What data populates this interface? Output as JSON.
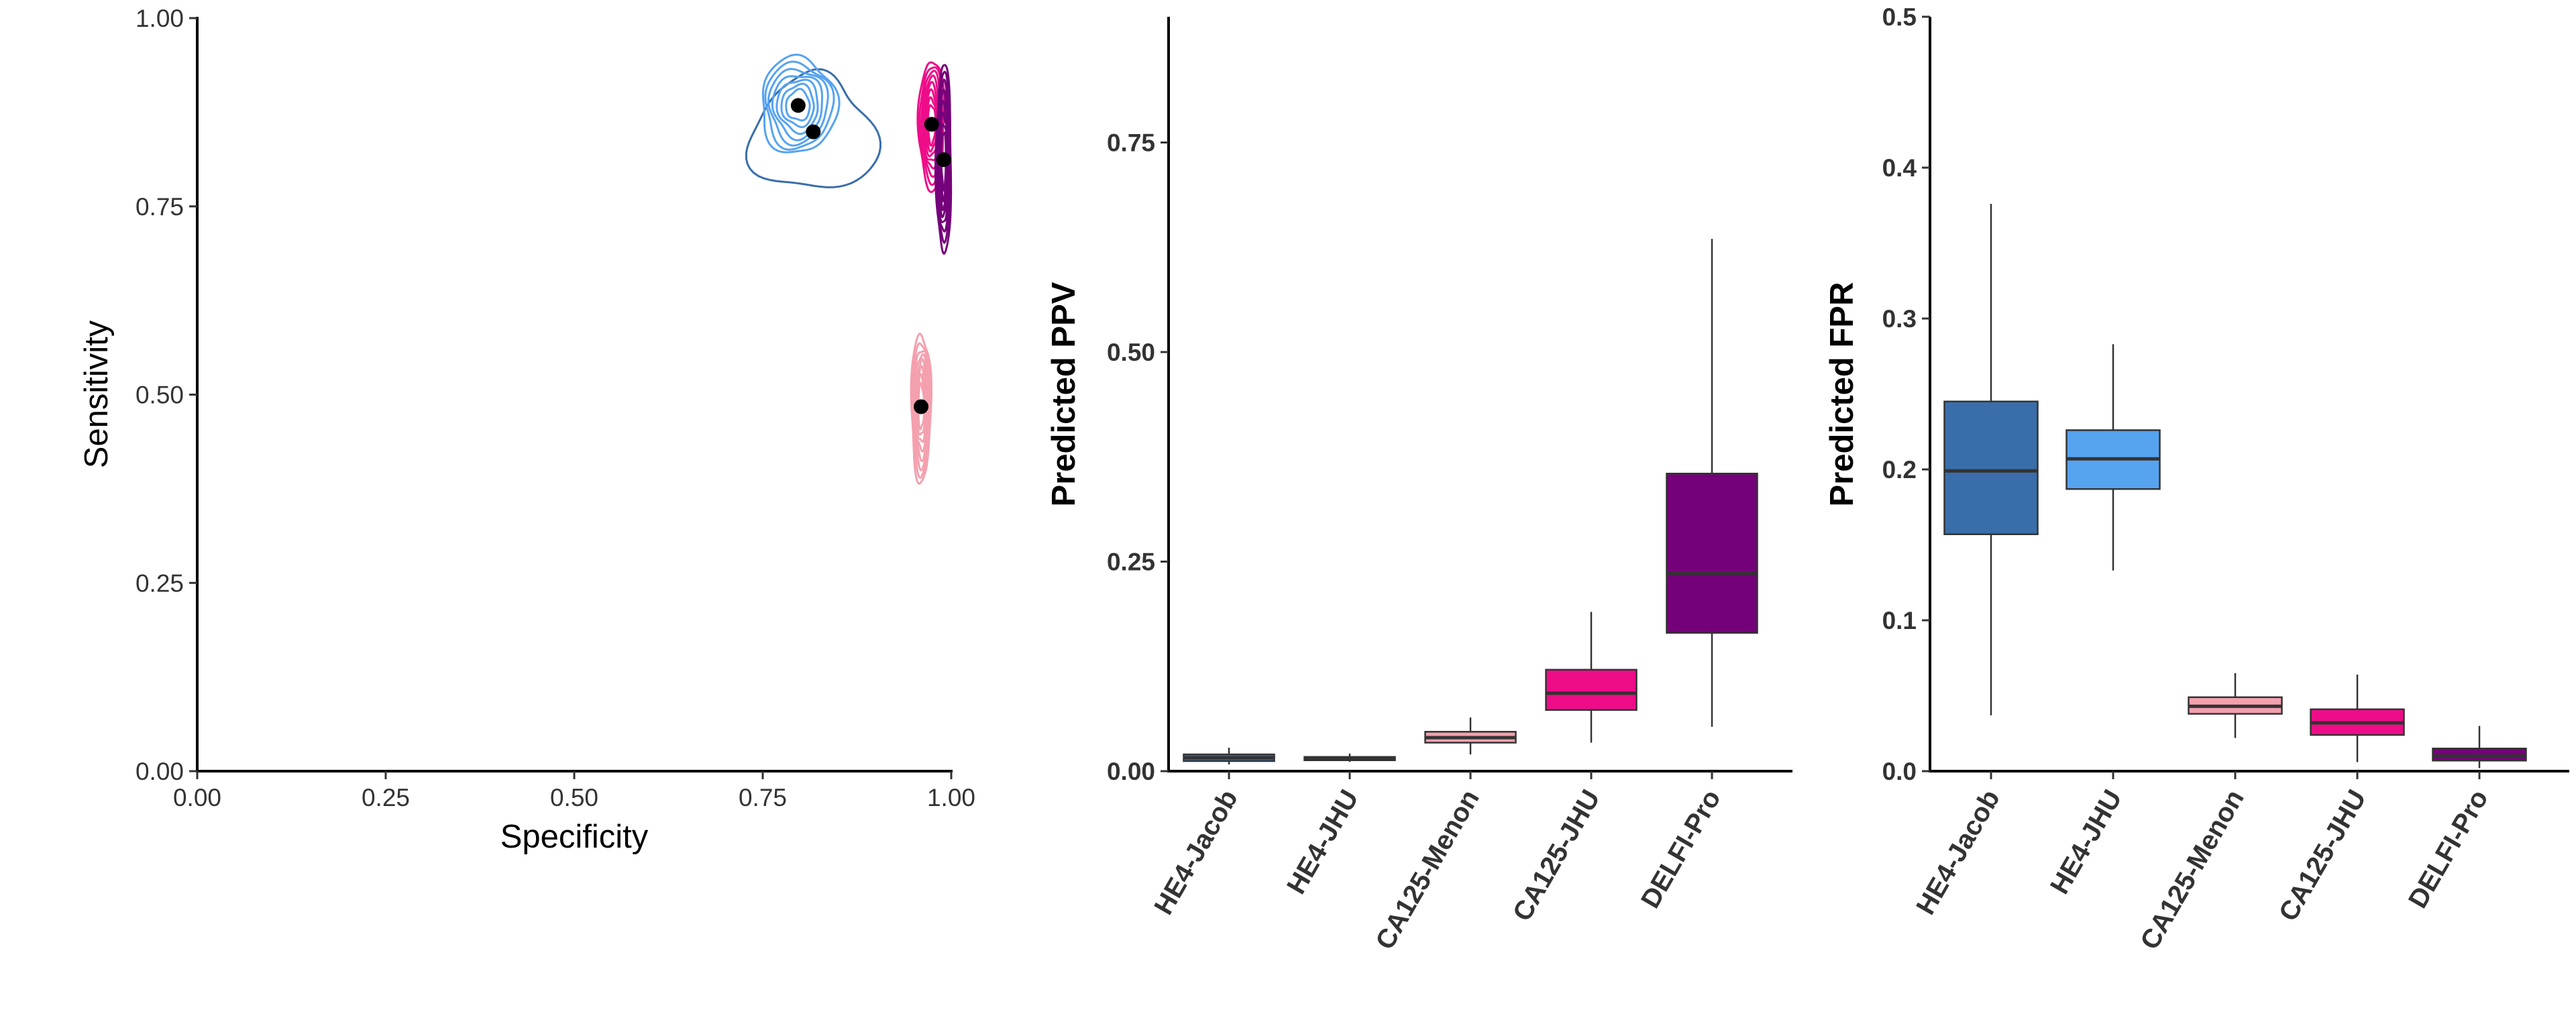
{
  "chart_data": [
    {
      "type": "scatter",
      "xlabel": "Specificity",
      "ylabel": "Sensitivity",
      "xlim": [
        0,
        1
      ],
      "ylim": [
        0,
        1
      ],
      "x_ticks": [
        "0.00",
        "0.25",
        "0.50",
        "0.75",
        "1.00"
      ],
      "y_ticks": [
        "0.00",
        "0.25",
        "0.50",
        "0.75",
        "1.00"
      ],
      "grid": false,
      "points": [
        {
          "category": "HE4-Jacob",
          "x": 0.817,
          "y": 0.849,
          "color": "#3A6EAA",
          "contour": {
            "rx": 0.082,
            "ry": 0.077,
            "rings": 1
          }
        },
        {
          "category": "HE4-JHU",
          "x": 0.797,
          "y": 0.884,
          "color": "#56A3F0",
          "contour": {
            "rx": 0.05,
            "ry": 0.064,
            "rings": 7
          }
        },
        {
          "category": "CA125-Menon",
          "x": 0.96,
          "y": 0.484,
          "color": "#F4A0AE",
          "contour": {
            "rx": 0.013,
            "ry": 0.098,
            "rings": 8
          }
        },
        {
          "category": "CA125-JHU",
          "x": 0.974,
          "y": 0.859,
          "color": "#EE0C88",
          "contour": {
            "rx": 0.017,
            "ry": 0.086,
            "rings": 8
          }
        },
        {
          "category": "DELFI-Pro",
          "x": 0.99,
          "y": 0.812,
          "color": "#74007A",
          "contour": {
            "rx": 0.01,
            "ry": 0.125,
            "rings": 8
          }
        }
      ]
    },
    {
      "type": "box",
      "xlabel": "",
      "ylabel": "Predicted PPV",
      "ylim": [
        0,
        0.9
      ],
      "y_ticks": [
        "0.00",
        "0.25",
        "0.50",
        "0.75"
      ],
      "categories": [
        "HE4-Jacob",
        "HE4-JHU",
        "CA125-Menon",
        "CA125-JHU",
        "DELFI-Pro"
      ],
      "boxes": [
        {
          "min": 0.008,
          "q1": 0.012,
          "median": 0.016,
          "q3": 0.02,
          "max": 0.028,
          "color": "#3A6EAA"
        },
        {
          "min": 0.011,
          "q1": 0.013,
          "median": 0.015,
          "q3": 0.017,
          "max": 0.021,
          "color": "#56A3F0"
        },
        {
          "min": 0.02,
          "q1": 0.034,
          "median": 0.04,
          "q3": 0.047,
          "max": 0.064,
          "color": "#F4A0AE"
        },
        {
          "min": 0.034,
          "q1": 0.073,
          "median": 0.093,
          "q3": 0.121,
          "max": 0.19,
          "color": "#EE0C88"
        },
        {
          "min": 0.053,
          "q1": 0.165,
          "median": 0.236,
          "q3": 0.355,
          "max": 0.635,
          "color": "#74007A"
        }
      ]
    },
    {
      "type": "box",
      "xlabel": "",
      "ylabel": "Predicted FPR",
      "ylim": [
        0,
        0.5
      ],
      "y_ticks": [
        "0.0",
        "0.1",
        "0.2",
        "0.3",
        "0.4",
        "0.5"
      ],
      "categories": [
        "HE4-Jacob",
        "HE4-JHU",
        "CA125-Menon",
        "CA125-JHU",
        "DELFI-Pro"
      ],
      "boxes": [
        {
          "min": 0.037,
          "q1": 0.157,
          "median": 0.199,
          "q3": 0.245,
          "max": 0.376,
          "color": "#3A6EAA"
        },
        {
          "min": 0.133,
          "q1": 0.187,
          "median": 0.207,
          "q3": 0.226,
          "max": 0.283,
          "color": "#56A3F0"
        },
        {
          "min": 0.022,
          "q1": 0.038,
          "median": 0.043,
          "q3": 0.049,
          "max": 0.065,
          "color": "#F4A0AE"
        },
        {
          "min": 0.006,
          "q1": 0.024,
          "median": 0.032,
          "q3": 0.041,
          "max": 0.064,
          "color": "#EE0C88"
        },
        {
          "min": 0.002,
          "q1": 0.007,
          "median": 0.01,
          "q3": 0.015,
          "max": 0.03,
          "color": "#74007A"
        }
      ]
    }
  ]
}
